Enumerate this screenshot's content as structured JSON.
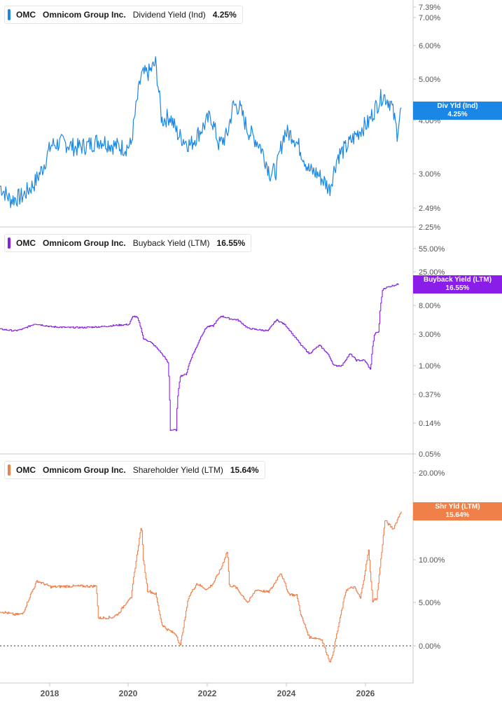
{
  "colors": {
    "blue": "#1a87e6",
    "purple": "#8a1ee8",
    "orange": "#f0804a",
    "axis": "#555555",
    "divider": "#c8c8c8"
  },
  "panels": [
    {
      "ticker": "OMC",
      "company": "Omnicom Group Inc.",
      "metric": "Dividend Yield (Ind)",
      "value": "4.25%",
      "tag_line1": "Div Yld (Ind)",
      "tag_line2": "4.25%",
      "yticks": [
        "7.39%",
        "7.00%",
        "6.00%",
        "5.00%",
        "4.00%",
        "3.00%",
        "2.49%",
        "2.25%"
      ]
    },
    {
      "ticker": "OMC",
      "company": "Omnicom Group Inc.",
      "metric": "Buyback Yield (LTM)",
      "value": "16.55%",
      "tag_line1": "Buyback Yield (LTM)",
      "tag_line2": "16.55%",
      "yticks": [
        "55.00%",
        "25.00%",
        "8.00%",
        "3.00%",
        "1.00%",
        "0.37%",
        "0.14%",
        "0.05%"
      ]
    },
    {
      "ticker": "OMC",
      "company": "Omnicom Group Inc.",
      "metric": "Shareholder Yield (LTM)",
      "value": "15.64%",
      "tag_line1": "Shr Yld (LTM)",
      "tag_line2": "15.64%",
      "yticks": [
        "20.00%",
        "15.00%",
        "10.00%",
        "5.00%",
        "0.00%"
      ]
    }
  ],
  "xticks": [
    "2018",
    "2020",
    "2022",
    "2024",
    "2026"
  ],
  "chart_data": [
    {
      "type": "line",
      "title": "OMC Omnicom Group Inc. Dividend Yield (Ind) 4.25%",
      "yscale": "log",
      "ylim": [
        2.25,
        7.39
      ],
      "series": [
        {
          "name": "Dividend Yield (Ind)",
          "color": "#1a87e6",
          "x": [
            2016.95,
            2017.2,
            2017.5,
            2017.65,
            2017.8,
            2018.0,
            2018.2,
            2018.5,
            2018.8,
            2019.1,
            2019.4,
            2019.7,
            2020.0,
            2020.15,
            2020.2,
            2020.4,
            2020.6,
            2020.75,
            2020.9,
            2021.1,
            2021.3,
            2021.6,
            2021.9,
            2022.1,
            2022.3,
            2022.5,
            2022.65,
            2022.8,
            2023.0,
            2023.3,
            2023.55,
            2023.7,
            2023.9,
            2024.1,
            2024.3,
            2024.5,
            2024.7,
            2024.9,
            2025.0,
            2025.2,
            2025.4,
            2025.6,
            2025.8,
            2025.95,
            2026.1,
            2026.3,
            2026.5,
            2026.65,
            2026.75
          ],
          "values": [
            2.8,
            2.6,
            2.65,
            2.75,
            2.85,
            3.1,
            3.5,
            3.55,
            3.45,
            3.5,
            3.6,
            3.5,
            3.45,
            3.5,
            3.8,
            5.1,
            5.2,
            5.45,
            4.0,
            4.1,
            3.7,
            3.5,
            3.85,
            4.1,
            3.5,
            3.7,
            4.35,
            4.3,
            3.8,
            3.5,
            3.0,
            3.05,
            3.75,
            3.7,
            3.4,
            3.05,
            3.0,
            2.85,
            2.75,
            3.3,
            3.45,
            3.65,
            3.85,
            3.95,
            4.25,
            4.6,
            4.4,
            3.75,
            4.25
          ]
        }
      ]
    },
    {
      "type": "line",
      "title": "OMC Omnicom Group Inc. Buyback Yield (LTM) 16.55%",
      "yscale": "log",
      "ylim": [
        0.05,
        55
      ],
      "series": [
        {
          "name": "Buyback Yield (LTM)",
          "color": "#8a1ee8",
          "x": [
            2016.95,
            2017.3,
            2017.5,
            2017.8,
            2018.2,
            2018.6,
            2019.0,
            2019.4,
            2019.8,
            2020.1,
            2020.2,
            2020.3,
            2020.45,
            2020.6,
            2020.9,
            2021.05,
            2021.1,
            2021.25,
            2021.35,
            2021.5,
            2021.75,
            2022.0,
            2022.15,
            2022.35,
            2022.55,
            2022.75,
            2023.0,
            2023.3,
            2023.5,
            2023.7,
            2023.9,
            2024.1,
            2024.3,
            2024.5,
            2024.75,
            2024.95,
            2025.1,
            2025.3,
            2025.5,
            2025.65,
            2025.85,
            2026.0,
            2026.1,
            2026.2,
            2026.3,
            2026.45,
            2026.7
          ],
          "values": [
            3.5,
            3.3,
            3.5,
            4.2,
            3.8,
            3.7,
            3.7,
            3.8,
            4.0,
            4.1,
            5.5,
            5.2,
            2.5,
            2.3,
            1.5,
            1.1,
            0.11,
            0.11,
            0.7,
            0.75,
            1.9,
            3.8,
            3.9,
            5.5,
            5.0,
            4.8,
            3.6,
            3.4,
            3.3,
            4.8,
            4.1,
            2.9,
            2.0,
            1.5,
            2.0,
            1.5,
            1.0,
            1.0,
            1.5,
            1.2,
            1.2,
            0.85,
            3.0,
            3.2,
            14,
            15,
            16.55
          ]
        }
      ]
    },
    {
      "type": "line",
      "title": "OMC Omnicom Group Inc. Shareholder Yield (LTM) 15.64%",
      "ylim": [
        -3,
        20
      ],
      "series": [
        {
          "name": "Shareholder Yield (LTM)",
          "color": "#f0804a",
          "x": [
            2016.95,
            2017.3,
            2017.5,
            2017.7,
            2017.85,
            2018.2,
            2018.6,
            2019.0,
            2019.3,
            2019.35,
            2019.7,
            2019.85,
            2020.1,
            2020.15,
            2020.2,
            2020.4,
            2020.45,
            2020.55,
            2020.75,
            2020.9,
            2021.0,
            2021.25,
            2021.35,
            2021.55,
            2021.75,
            2022.0,
            2022.15,
            2022.35,
            2022.5,
            2022.55,
            2022.7,
            2023.0,
            2023.2,
            2023.5,
            2023.6,
            2023.8,
            2024.0,
            2024.2,
            2024.3,
            2024.5,
            2024.8,
            2025.0,
            2025.05,
            2025.2,
            2025.4,
            2025.6,
            2025.75,
            2025.95,
            2026.05,
            2026.15,
            2026.35,
            2026.55,
            2026.75
          ],
          "values": [
            4.0,
            3.6,
            3.7,
            6.0,
            7.5,
            6.8,
            6.9,
            6.9,
            6.9,
            3.2,
            3.3,
            3.8,
            5.5,
            5.4,
            7.5,
            14.0,
            10.0,
            6.4,
            6.0,
            2.5,
            2.0,
            1.3,
            0.0,
            5.6,
            7.2,
            6.5,
            7.2,
            9.0,
            11.0,
            7.0,
            6.8,
            5.0,
            6.5,
            6.2,
            6.8,
            8.5,
            6.0,
            5.8,
            3.5,
            1.0,
            0.8,
            -1.8,
            -1.5,
            2.0,
            6.5,
            6.8,
            5.5,
            11.0,
            5.2,
            5.5,
            14.5,
            13.5,
            15.64
          ]
        }
      ]
    }
  ]
}
